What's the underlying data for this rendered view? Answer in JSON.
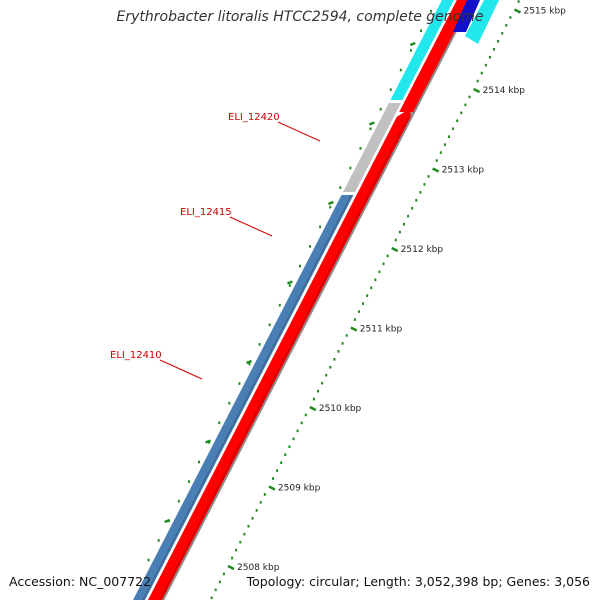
{
  "title": "Erythrobacter litoralis HTCC2594, complete genome",
  "footer": {
    "accession": "Accession: NC_007722",
    "stats": "Topology: circular; Length: 3,052,398 bp; Genes: 3,056"
  },
  "scale": {
    "unit": "kbp",
    "major_ticks": [
      "2508",
      "2509",
      "2510",
      "2511",
      "2512",
      "2513",
      "2514",
      "2515"
    ]
  },
  "gene_labels": [
    {
      "name": "ELI_12420",
      "color": "#cc0000"
    },
    {
      "name": "ELI_12415",
      "color": "#cc0000"
    },
    {
      "name": "ELI_12410",
      "color": "#cc0000"
    }
  ],
  "colors": {
    "gene_red": "#ff0000",
    "gene_blue": "#4a7fb5",
    "gene_gray": "#c0c0c0",
    "gene_cyan": "#22e8ee",
    "gene_navy": "#1010cc",
    "backbone": "#8c8c8c",
    "tick_green": "#1f8a1f"
  }
}
